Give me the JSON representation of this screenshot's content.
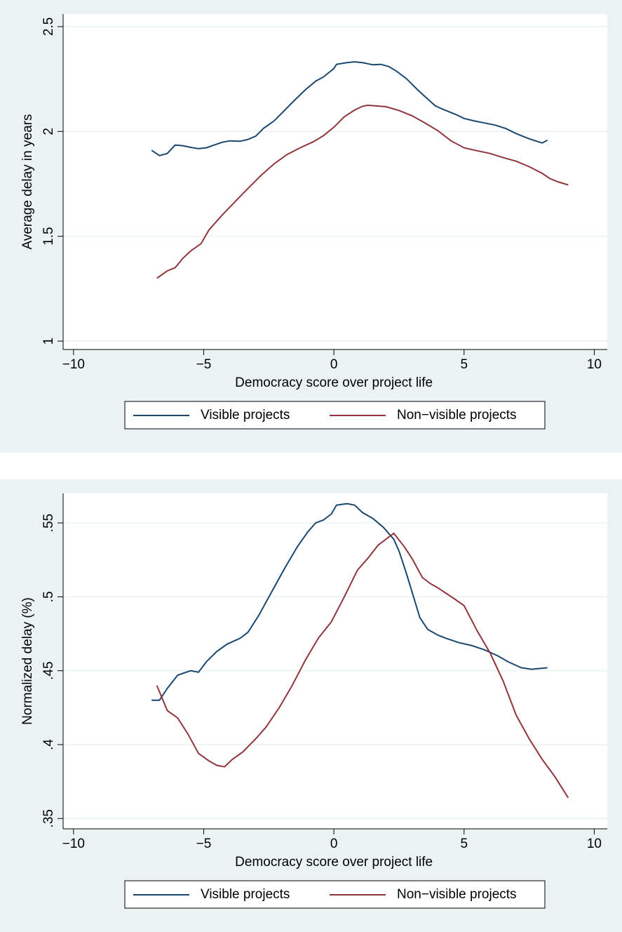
{
  "chart_data": [
    {
      "type": "line",
      "x_label": "Democracy score over project life",
      "y_label": "Average delay in years",
      "xlim": [
        -10.4,
        10.5
      ],
      "ylim": [
        0.96,
        2.56
      ],
      "grid": true,
      "xticks": [
        {
          "value": -10,
          "label": "−10"
        },
        {
          "value": -5,
          "label": "−5"
        },
        0,
        5,
        10
      ],
      "yticks": [
        1,
        1.5,
        2,
        2.5
      ],
      "series": [
        {
          "name": "Visible projects",
          "color": "#1a476f",
          "x": [
            -7,
            -6.7,
            -6.4,
            -6.1,
            -5.8,
            -5.5,
            -5.2,
            -4.9,
            -4.6,
            -4.3,
            -4,
            -3.6,
            -3.3,
            -3,
            -2.7,
            -2.3,
            -1.9,
            -1.5,
            -1.1,
            -0.7,
            -0.4,
            0,
            0.1,
            0.5,
            0.8,
            1.1,
            1.5,
            1.8,
            2.1,
            2.4,
            2.8,
            3.2,
            3.6,
            3.9,
            4.2,
            4.7,
            5,
            5.4,
            5.8,
            6.2,
            6.6,
            7,
            7.5,
            8,
            8.2
          ],
          "values": [
            1.91,
            1.885,
            1.895,
            1.935,
            1.932,
            1.924,
            1.918,
            1.922,
            1.935,
            1.948,
            1.955,
            1.953,
            1.962,
            1.978,
            2.015,
            2.05,
            2.1,
            2.15,
            2.198,
            2.24,
            2.26,
            2.3,
            2.32,
            2.328,
            2.332,
            2.328,
            2.318,
            2.32,
            2.31,
            2.288,
            2.25,
            2.2,
            2.155,
            2.122,
            2.105,
            2.08,
            2.062,
            2.05,
            2.04,
            2.03,
            2.014,
            1.99,
            1.965,
            1.945,
            1.958
          ]
        },
        {
          "name": "Non−visible projects",
          "color": "#90353b",
          "x": [
            -6.8,
            -6.4,
            -6.1,
            -5.8,
            -5.5,
            -5.1,
            -4.8,
            -4.3,
            -3.8,
            -3.3,
            -2.8,
            -2.3,
            -1.8,
            -1.3,
            -0.8,
            -0.4,
            0,
            0.4,
            0.8,
            1.1,
            1.3,
            1.6,
            2,
            2.5,
            3,
            3.5,
            4,
            4.5,
            5,
            5.5,
            6,
            6.5,
            7,
            7.5,
            8,
            8.3,
            8.6,
            9
          ],
          "values": [
            1.3,
            1.335,
            1.35,
            1.395,
            1.43,
            1.465,
            1.53,
            1.6,
            1.665,
            1.728,
            1.79,
            1.845,
            1.89,
            1.922,
            1.95,
            1.98,
            2.02,
            2.07,
            2.102,
            2.12,
            2.125,
            2.122,
            2.118,
            2.1,
            2.075,
            2.04,
            2.003,
            1.955,
            1.922,
            1.908,
            1.895,
            1.875,
            1.858,
            1.832,
            1.8,
            1.775,
            1.76,
            1.745
          ]
        }
      ]
    },
    {
      "type": "line",
      "x_label": "Democracy score over project life",
      "y_label": "Normalized delay (%)",
      "xlim": [
        -10.4,
        10.5
      ],
      "ylim": [
        0.343,
        0.57
      ],
      "grid": true,
      "xticks": [
        {
          "value": -10,
          "label": "−10"
        },
        {
          "value": -5,
          "label": "−5"
        },
        0,
        5,
        10
      ],
      "yticks": [
        {
          "value": 0.35,
          "label": ".35"
        },
        {
          "value": 0.4,
          "label": ".4"
        },
        {
          "value": 0.45,
          "label": ".45"
        },
        {
          "value": 0.5,
          "label": ".5"
        },
        {
          "value": 0.55,
          "label": ".55"
        }
      ],
      "series": [
        {
          "name": "Visible projects",
          "color": "#1a476f",
          "x": [
            -7,
            -6.7,
            -6.4,
            -6,
            -5.5,
            -5.2,
            -4.9,
            -4.5,
            -4.1,
            -3.6,
            -3.3,
            -2.9,
            -2.4,
            -1.9,
            -1.4,
            -1,
            -0.7,
            -0.4,
            -0.1,
            0.1,
            0.5,
            0.8,
            1.1,
            1.5,
            1.9,
            2.3,
            2.5,
            2.8,
            3.3,
            3.6,
            4,
            4.3,
            4.8,
            5.3,
            5.8,
            6.3,
            6.7,
            7.2,
            7.6,
            8.2
          ],
          "values": [
            0.43,
            0.43,
            0.438,
            0.447,
            0.45,
            0.449,
            0.456,
            0.463,
            0.468,
            0.472,
            0.476,
            0.487,
            0.503,
            0.519,
            0.534,
            0.544,
            0.55,
            0.552,
            0.556,
            0.562,
            0.563,
            0.562,
            0.557,
            0.553,
            0.547,
            0.539,
            0.531,
            0.515,
            0.486,
            0.478,
            0.474,
            0.472,
            0.469,
            0.467,
            0.464,
            0.46,
            0.456,
            0.452,
            0.451,
            0.452
          ]
        },
        {
          "name": "Non−visible projects",
          "color": "#90353b",
          "x": [
            -6.8,
            -6.4,
            -6,
            -5.6,
            -5.2,
            -4.8,
            -4.5,
            -4.2,
            -3.9,
            -3.5,
            -3,
            -2.6,
            -2.1,
            -1.6,
            -1.1,
            -0.6,
            -0.1,
            0.4,
            0.9,
            1.3,
            1.7,
            2.3,
            2.7,
            3,
            3.4,
            3.7,
            4,
            4.6,
            5,
            5.5,
            6,
            6.5,
            7,
            7.5,
            8,
            8.5,
            9
          ],
          "values": [
            0.44,
            0.423,
            0.418,
            0.407,
            0.394,
            0.389,
            0.386,
            0.385,
            0.39,
            0.395,
            0.404,
            0.412,
            0.425,
            0.44,
            0.457,
            0.472,
            0.483,
            0.5,
            0.518,
            0.526,
            0.535,
            0.543,
            0.534,
            0.526,
            0.513,
            0.509,
            0.506,
            0.499,
            0.494,
            0.477,
            0.462,
            0.443,
            0.42,
            0.404,
            0.39,
            0.378,
            0.364
          ]
        }
      ]
    }
  ]
}
